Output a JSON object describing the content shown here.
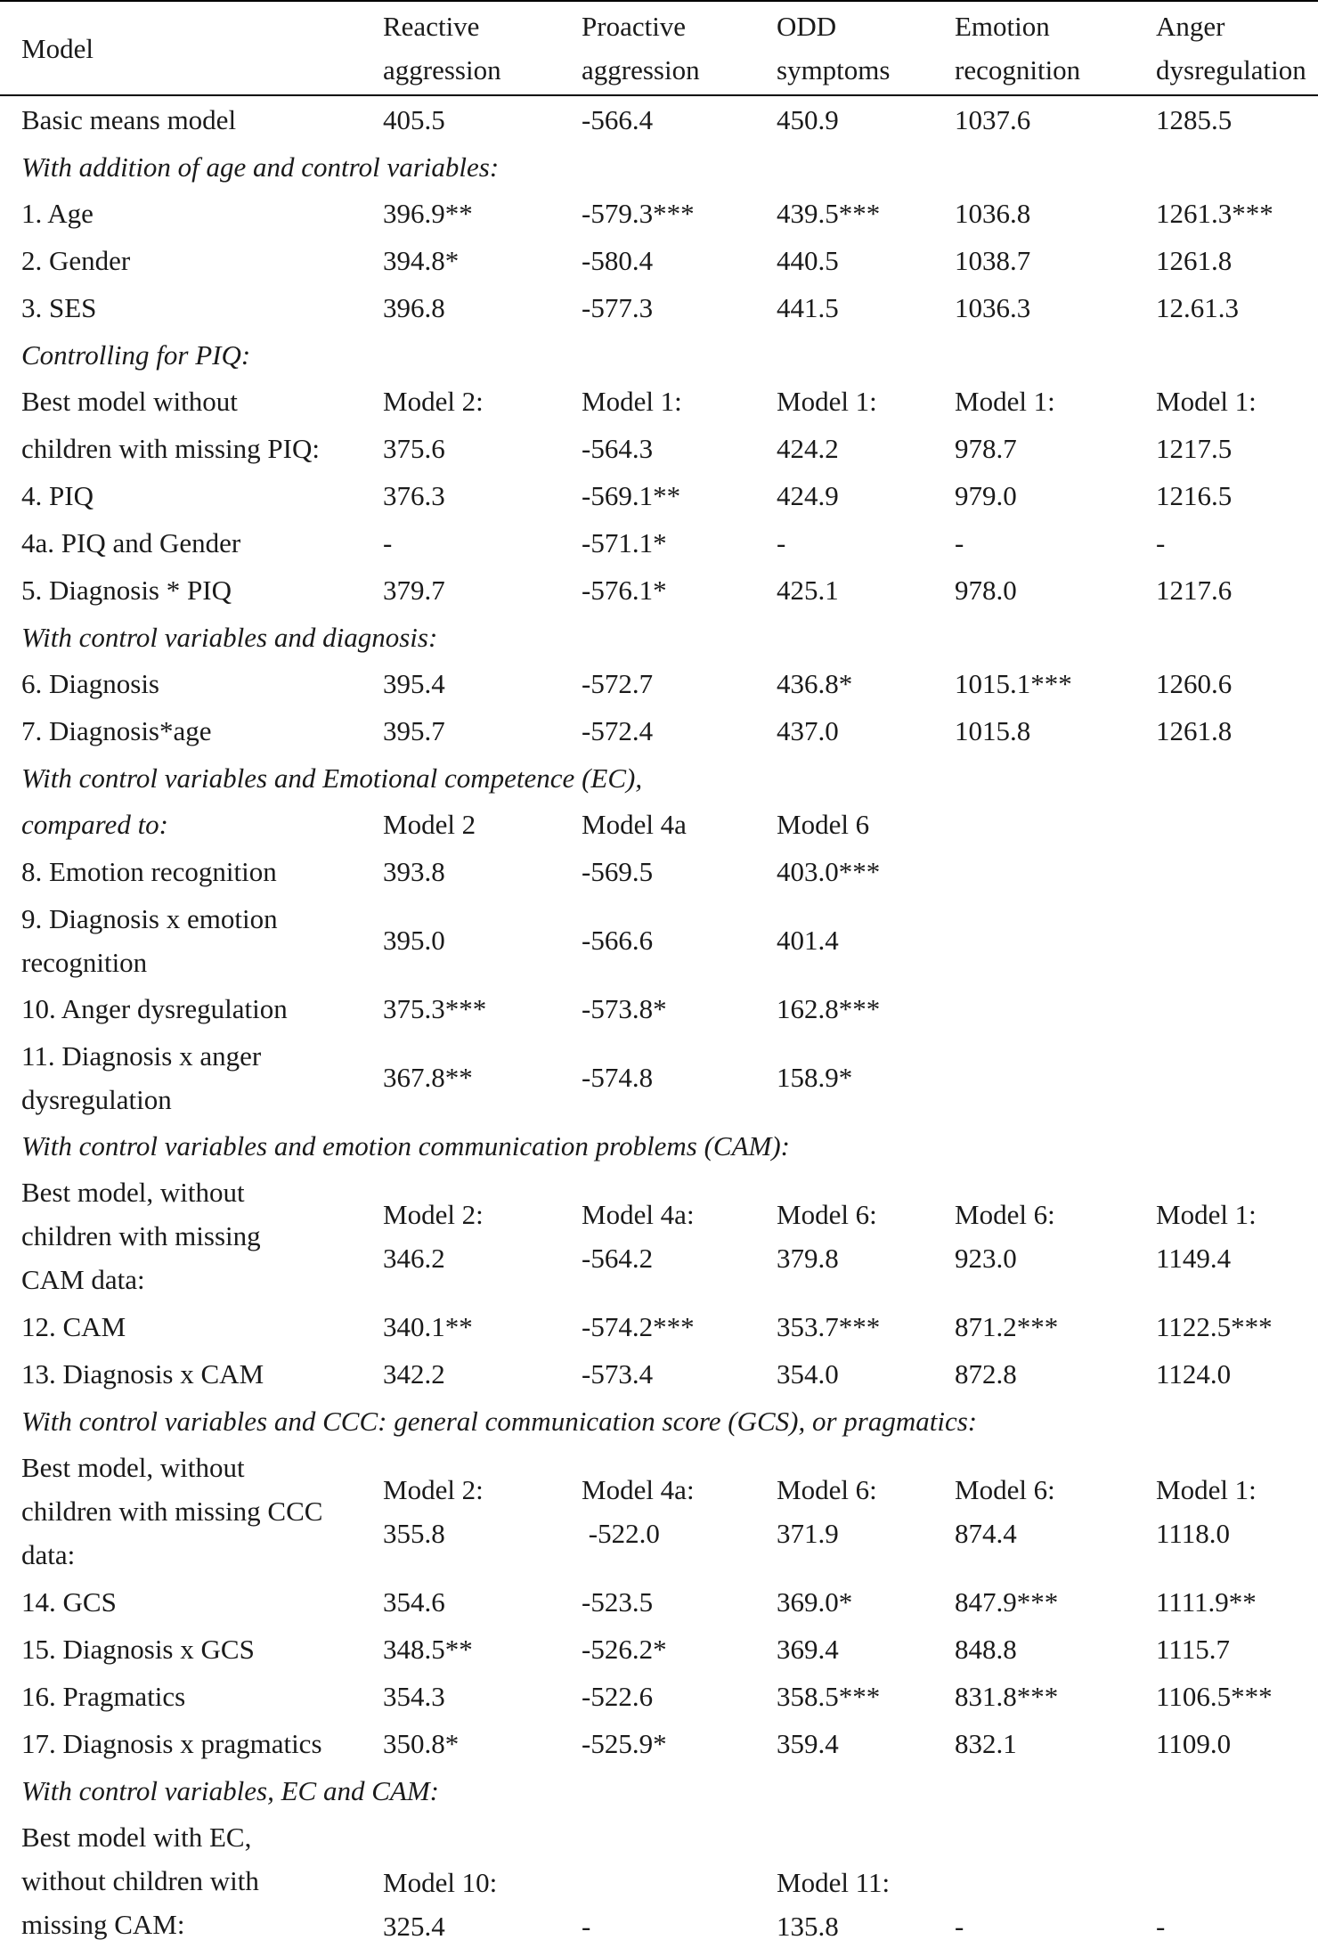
{
  "table": {
    "headers": [
      "Model",
      "Reactive\naggression",
      "Proactive\naggression",
      "ODD\nsymptoms",
      "Emotion\nrecognition",
      "Anger\ndysregulation"
    ],
    "rows": [
      {
        "type": "data",
        "label": "Basic means model",
        "cells": [
          "405.5",
          "-566.4",
          "450.9",
          "1037.6",
          "1285.5"
        ]
      },
      {
        "type": "section",
        "label": "With addition of age and control variables:"
      },
      {
        "type": "data",
        "label": "1. Age",
        "cells": [
          "396.9**",
          "-579.3***",
          "439.5***",
          "1036.8",
          "1261.3***"
        ]
      },
      {
        "type": "data",
        "label": "2. Gender",
        "cells": [
          "394.8*",
          "-580.4",
          "440.5",
          "1038.7",
          "1261.8"
        ]
      },
      {
        "type": "data",
        "label": "3. SES",
        "cells": [
          "396.8",
          "-577.3",
          "441.5",
          "1036.3",
          "12.61.3"
        ]
      },
      {
        "type": "section",
        "label": "Controlling for PIQ:"
      },
      {
        "type": "data",
        "label": "Best model without",
        "cells": [
          "Model 2:",
          "Model 1:",
          "Model 1:",
          "Model 1:",
          "Model 1:"
        ]
      },
      {
        "type": "data",
        "label": "children with missing PIQ:",
        "cells": [
          "375.6",
          "-564.3",
          "424.2",
          "978.7",
          "1217.5"
        ]
      },
      {
        "type": "data",
        "label": "4. PIQ",
        "cells": [
          "376.3",
          "-569.1**",
          "424.9",
          "979.0",
          "1216.5"
        ]
      },
      {
        "type": "data",
        "label": "4a. PIQ and Gender",
        "cells": [
          "-",
          "-571.1*",
          "-",
          "-",
          "-"
        ]
      },
      {
        "type": "data",
        "label": "5. Diagnosis * PIQ",
        "cells": [
          "379.7",
          "-576.1*",
          "425.1",
          "978.0",
          "1217.6"
        ]
      },
      {
        "type": "section",
        "label": "With control variables and diagnosis:"
      },
      {
        "type": "data",
        "label": "6. Diagnosis",
        "cells": [
          "395.4",
          "-572.7",
          "436.8*",
          "1015.1***",
          "1260.6"
        ]
      },
      {
        "type": "data",
        "label": "7. Diagnosis*age",
        "cells": [
          "395.7",
          "-572.4",
          "437.0",
          "1015.8",
          "1261.8"
        ]
      },
      {
        "type": "section",
        "label": "With control variables and Emotional competence (EC),"
      },
      {
        "type": "data",
        "label": "compared to:",
        "italic": true,
        "cells": [
          "Model 2",
          "Model 4a",
          "Model 6",
          "",
          ""
        ]
      },
      {
        "type": "data",
        "label": "8. Emotion recognition",
        "cells": [
          "393.8",
          "-569.5",
          "403.0***",
          "",
          ""
        ]
      },
      {
        "type": "data2",
        "label": "9. Diagnosis x emotion\nrecognition",
        "cells": [
          "395.0",
          "-566.6",
          "401.4",
          "",
          ""
        ]
      },
      {
        "type": "data",
        "label": "10. Anger dysregulation",
        "cells": [
          "375.3***",
          "-573.8*",
          "162.8***",
          "",
          ""
        ]
      },
      {
        "type": "data2",
        "label": "11. Diagnosis x anger\ndysregulation",
        "cells": [
          "367.8**",
          "-574.8",
          "158.9*",
          "",
          ""
        ]
      },
      {
        "type": "section",
        "label": "With control variables and emotion communication problems (CAM):"
      },
      {
        "type": "data3",
        "label": "Best model, without\nchildren with missing\nCAM data:",
        "cells": [
          "Model 2:\n346.2",
          "Model 4a:\n-564.2",
          "Model 6:\n379.8",
          "Model 6:\n923.0",
          "Model 1:\n1149.4"
        ]
      },
      {
        "type": "data",
        "label": "12. CAM",
        "cells": [
          "340.1**",
          "-574.2***",
          "353.7***",
          "871.2***",
          "1122.5***"
        ]
      },
      {
        "type": "data",
        "label": "13. Diagnosis x CAM",
        "cells": [
          "342.2",
          "-573.4",
          "354.0",
          "872.8",
          "1124.0"
        ]
      },
      {
        "type": "section",
        "label": "With control variables and CCC: general communication score (GCS), or pragmatics:"
      },
      {
        "type": "data3",
        "label": "Best model, without\nchildren with missing CCC\ndata:",
        "cells": [
          "Model 2:\n355.8",
          "Model 4a:\n -522.0",
          "Model 6:\n371.9",
          "Model 6:\n874.4",
          "Model 1:\n1118.0"
        ]
      },
      {
        "type": "data",
        "label": "14.  GCS",
        "cells": [
          "354.6",
          "-523.5",
          "369.0*",
          "847.9***",
          "1111.9**"
        ]
      },
      {
        "type": "data",
        "label": "15. Diagnosis x GCS",
        "cells": [
          "348.5**",
          "-526.2*",
          "369.4",
          "848.8",
          "1115.7"
        ]
      },
      {
        "type": "data",
        "label": "16. Pragmatics",
        "cells": [
          "354.3",
          "-522.6",
          "358.5***",
          "831.8***",
          "1106.5***"
        ]
      },
      {
        "type": "data",
        "label": "17. Diagnosis x pragmatics",
        "cells": [
          "350.8*",
          "-525.9*",
          "359.4",
          "832.1",
          "1109.0"
        ]
      },
      {
        "type": "section",
        "label": "With control variables, EC and CAM:"
      },
      {
        "type": "data3b",
        "label": "Best model with EC,\nwithout children with\nmissing CAM:",
        "cells": [
          "Model 10:\n325.4",
          "-",
          "Model 11:\n135.8",
          "-",
          "-"
        ]
      }
    ]
  }
}
